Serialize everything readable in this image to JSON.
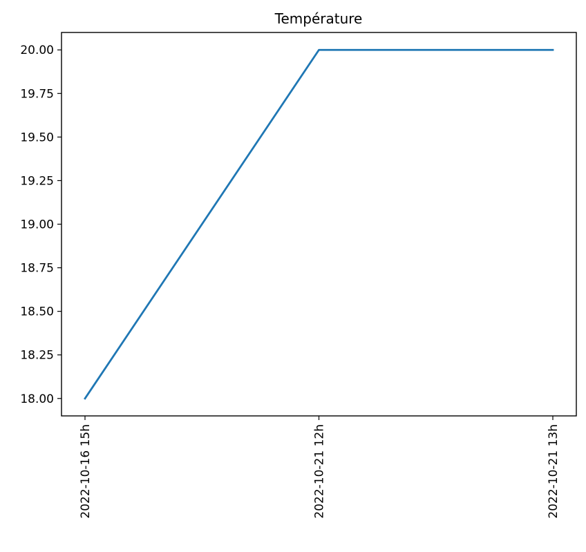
{
  "chart_data": {
    "type": "line",
    "title": "Température",
    "xlabel": "",
    "ylabel": "",
    "categories": [
      "2022-10-16 15h",
      "2022-10-21 12h",
      "2022-10-21 13h"
    ],
    "series": [
      {
        "values": [
          18.0,
          20.0,
          20.0
        ],
        "color": "#1f77b4"
      }
    ],
    "ylim": [
      17.9,
      20.1
    ],
    "yticks": [
      "18.00",
      "18.25",
      "18.50",
      "18.75",
      "19.00",
      "19.25",
      "19.50",
      "19.75",
      "20.00"
    ],
    "grid": false,
    "legend": "none"
  }
}
